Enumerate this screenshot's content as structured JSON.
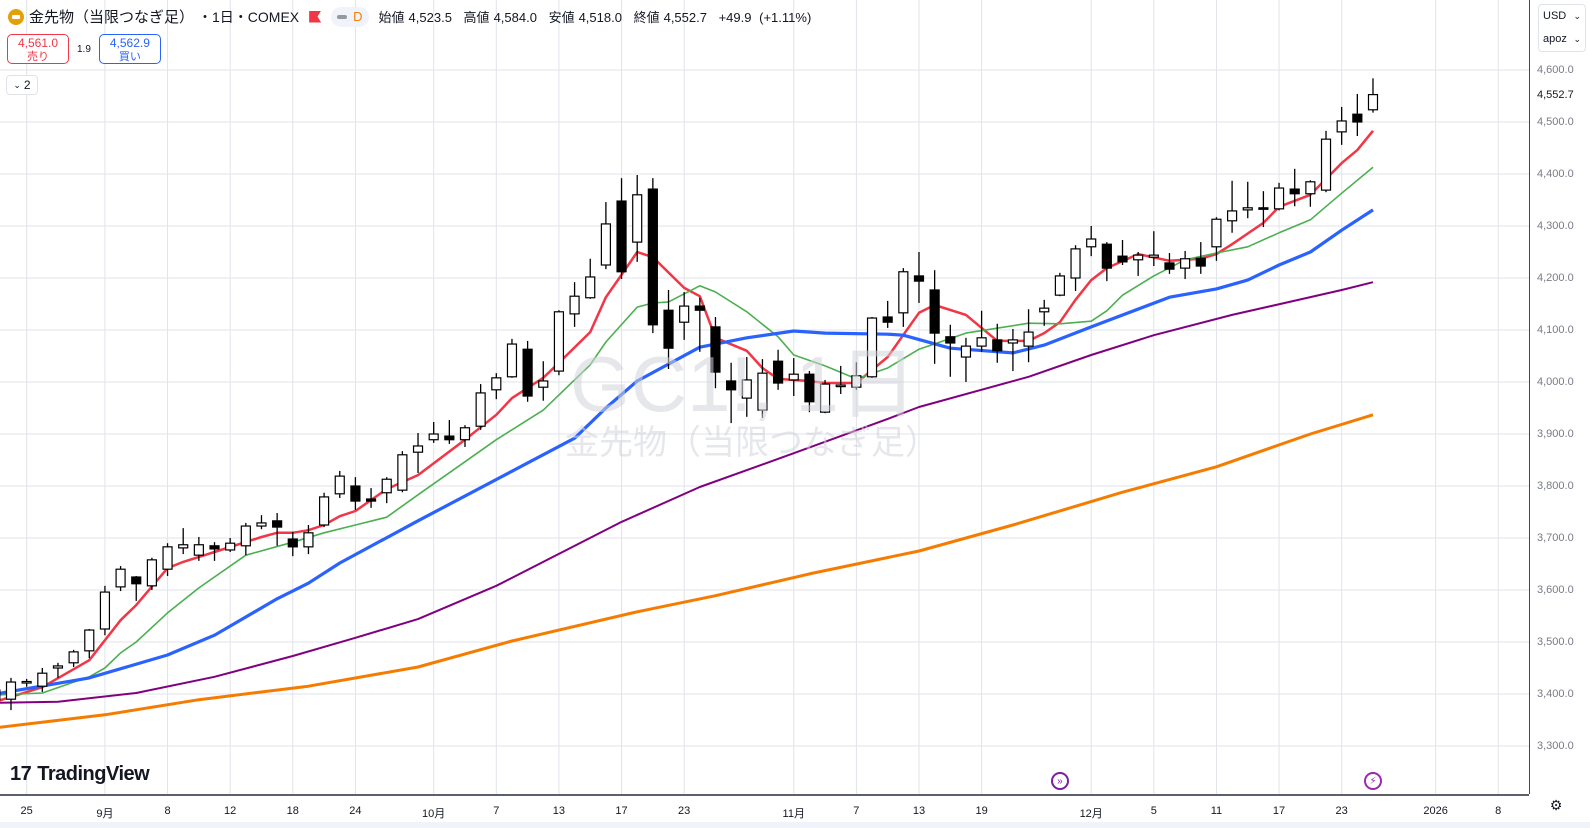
{
  "header": {
    "icon": "gold-bars-icon",
    "title": "金先物（当限つなぎ足）",
    "meta": "・1日・COMEX",
    "pill_label": "D",
    "ohlc": {
      "open_label": "始値",
      "open": "4,523.5",
      "high_label": "高値",
      "high": "4,584.0",
      "low_label": "安値",
      "low": "4,518.0",
      "close_label": "終値",
      "close": "4,552.7",
      "change": "+49.9",
      "change_pct": "(+1.11%)"
    }
  },
  "trade": {
    "sell_price": "4,561.0",
    "sell_label": "売り",
    "spread": "1.9",
    "buy_price": "4,562.9",
    "buy_label": "買い"
  },
  "indicators_toggle": "2",
  "watermark": {
    "symbol": "GC1!, 1日",
    "name": "金先物（当限つなぎ足）"
  },
  "right_panel": {
    "currency": "USD",
    "unit": "apoz",
    "current_price_label": "4,552.7"
  },
  "logo": "TradingView",
  "settings_icon": "gear-icon",
  "colors": {
    "up_body": "#ffffff",
    "down_body": "#000000",
    "ma_red": "#f23645",
    "ma_green": "#4caf50",
    "ma_blue": "#2962ff",
    "ma_purple": "#800080",
    "ma_orange": "#f57c00",
    "grid": "#e0e3eb"
  },
  "chart_data": {
    "type": "candlestick",
    "price_range": [
      3300,
      4600
    ],
    "price_ticks": [
      "4,600.0",
      "4,500.0",
      "4,400.0",
      "4,300.0",
      "4,200.0",
      "4,100.0",
      "4,000.0",
      "3,900.0",
      "3,800.0",
      "3,700.0",
      "3,600.0",
      "3,500.0",
      "3,400.0",
      "3,300.0"
    ],
    "price_tick_values": [
      4600,
      4500,
      4400,
      4300,
      4200,
      4100,
      4000,
      3900,
      3800,
      3700,
      3600,
      3500,
      3400,
      3300
    ],
    "current_price": 4552.7,
    "time_ticks": [
      {
        "label": "25",
        "index": 2
      },
      {
        "label": "9月",
        "index": 7
      },
      {
        "label": "8",
        "index": 11
      },
      {
        "label": "12",
        "index": 15
      },
      {
        "label": "18",
        "index": 19
      },
      {
        "label": "24",
        "index": 23
      },
      {
        "label": "10月",
        "index": 28
      },
      {
        "label": "7",
        "index": 32
      },
      {
        "label": "13",
        "index": 36
      },
      {
        "label": "17",
        "index": 40
      },
      {
        "label": "23",
        "index": 44
      },
      {
        "label": "11月",
        "index": 51
      },
      {
        "label": "7",
        "index": 55
      },
      {
        "label": "13",
        "index": 59
      },
      {
        "label": "19",
        "index": 63
      },
      {
        "label": "12月",
        "index": 70
      },
      {
        "label": "5",
        "index": 74
      },
      {
        "label": "11",
        "index": 78
      },
      {
        "label": "17",
        "index": 82
      },
      {
        "label": "23",
        "index": 86
      },
      {
        "label": "2026",
        "index": 92
      },
      {
        "label": "8",
        "index": 96
      }
    ],
    "events": [
      {
        "type": "dividend-split-icon",
        "index": 68,
        "color": "#7b1fa2"
      },
      {
        "type": "lightning-icon",
        "index": 88,
        "color": "#9c27b0"
      }
    ],
    "candles_ohlc": [
      [
        3408,
        3415,
        3380,
        3389
      ],
      [
        3390,
        3431,
        3369,
        3423
      ],
      [
        3422,
        3429,
        3414,
        3424
      ],
      [
        3415,
        3450,
        3404,
        3440
      ],
      [
        3450,
        3460,
        3431,
        3454
      ],
      [
        3460,
        3485,
        3452,
        3481
      ],
      [
        3483,
        3525,
        3469,
        3523
      ],
      [
        3525,
        3608,
        3513,
        3596
      ],
      [
        3606,
        3646,
        3598,
        3640
      ],
      [
        3625,
        3627,
        3579,
        3612
      ],
      [
        3608,
        3662,
        3600,
        3658
      ],
      [
        3640,
        3690,
        3627,
        3683
      ],
      [
        3681,
        3719,
        3669,
        3687
      ],
      [
        3667,
        3702,
        3656,
        3687
      ],
      [
        3685,
        3692,
        3656,
        3679
      ],
      [
        3677,
        3700,
        3673,
        3690
      ],
      [
        3685,
        3729,
        3667,
        3723
      ],
      [
        3723,
        3744,
        3717,
        3729
      ],
      [
        3733,
        3748,
        3685,
        3721
      ],
      [
        3698,
        3712,
        3665,
        3683
      ],
      [
        3683,
        3725,
        3669,
        3710
      ],
      [
        3725,
        3787,
        3721,
        3779
      ],
      [
        3785,
        3829,
        3777,
        3819
      ],
      [
        3800,
        3817,
        3754,
        3771
      ],
      [
        3775,
        3796,
        3758,
        3771
      ],
      [
        3787,
        3817,
        3767,
        3813
      ],
      [
        3792,
        3867,
        3788,
        3860
      ],
      [
        3865,
        3902,
        3825,
        3877
      ],
      [
        3889,
        3923,
        3883,
        3900
      ],
      [
        3896,
        3927,
        3881,
        3889
      ],
      [
        3889,
        3917,
        3875,
        3912
      ],
      [
        3915,
        3996,
        3908,
        3979
      ],
      [
        3985,
        4017,
        3967,
        4008
      ],
      [
        4010,
        4083,
        4008,
        4073
      ],
      [
        4063,
        4079,
        3962,
        3973
      ],
      [
        3990,
        4040,
        3964,
        4002
      ],
      [
        4021,
        4138,
        4013,
        4135
      ],
      [
        4131,
        4192,
        4106,
        4165
      ],
      [
        4162,
        4237,
        4160,
        4202
      ],
      [
        4225,
        4346,
        4217,
        4304
      ],
      [
        4348,
        4392,
        4198,
        4212
      ],
      [
        4269,
        4398,
        4231,
        4360
      ],
      [
        4371,
        4392,
        4094,
        4110
      ],
      [
        4138,
        4177,
        4025,
        4065
      ],
      [
        4115,
        4173,
        4081,
        4146
      ],
      [
        4146,
        4162,
        4058,
        4138
      ],
      [
        4106,
        4125,
        3988,
        4019
      ],
      [
        4002,
        4037,
        3921,
        3985
      ],
      [
        3969,
        4048,
        3933,
        4004
      ],
      [
        3946,
        4044,
        3931,
        4017
      ],
      [
        4040,
        4062,
        3985,
        3998
      ],
      [
        4004,
        4046,
        3973,
        4015
      ],
      [
        4015,
        4021,
        3942,
        3962
      ],
      [
        3942,
        4004,
        3940,
        3996
      ],
      [
        3993,
        4031,
        3977,
        3994
      ],
      [
        3990,
        4038,
        3985,
        4012
      ],
      [
        4010,
        4125,
        4008,
        4123
      ],
      [
        4125,
        4156,
        4104,
        4115
      ],
      [
        4133,
        4219,
        4106,
        4212
      ],
      [
        4204,
        4250,
        4152,
        4194
      ],
      [
        4177,
        4215,
        4035,
        4094
      ],
      [
        4087,
        4110,
        4010,
        4075
      ],
      [
        4048,
        4085,
        4000,
        4069
      ],
      [
        4069,
        4137,
        4058,
        4085
      ],
      [
        4081,
        4112,
        4037,
        4060
      ],
      [
        4075,
        4102,
        4021,
        4081
      ],
      [
        4069,
        4140,
        4038,
        4096
      ],
      [
        4135,
        4158,
        4108,
        4142
      ],
      [
        4167,
        4210,
        4165,
        4204
      ],
      [
        4200,
        4263,
        4175,
        4256
      ],
      [
        4260,
        4300,
        4242,
        4275
      ],
      [
        4265,
        4269,
        4194,
        4219
      ],
      [
        4242,
        4273,
        4225,
        4231
      ],
      [
        4235,
        4250,
        4204,
        4244
      ],
      [
        4240,
        4290,
        4223,
        4244
      ],
      [
        4229,
        4248,
        4208,
        4217
      ],
      [
        4219,
        4252,
        4198,
        4237
      ],
      [
        4238,
        4269,
        4208,
        4223
      ],
      [
        4260,
        4317,
        4233,
        4313
      ],
      [
        4310,
        4387,
        4287,
        4329
      ],
      [
        4331,
        4385,
        4315,
        4335
      ],
      [
        4335,
        4367,
        4298,
        4333
      ],
      [
        4333,
        4383,
        4330,
        4373
      ],
      [
        4371,
        4410,
        4338,
        4362
      ],
      [
        4362,
        4388,
        4337,
        4385
      ],
      [
        4369,
        4483,
        4365,
        4467
      ],
      [
        4481,
        4529,
        4456,
        4502
      ],
      [
        4515,
        4554,
        4473,
        4500
      ],
      [
        4523.5,
        4584,
        4518,
        4552.7
      ]
    ],
    "moving_averages": [
      {
        "name": "ma-red",
        "color": "#f23645",
        "points": [
          [
            0,
            3385
          ],
          [
            3,
            3413
          ],
          [
            6,
            3465
          ],
          [
            8,
            3542
          ],
          [
            9,
            3571
          ],
          [
            11,
            3642
          ],
          [
            12,
            3654
          ],
          [
            14,
            3673
          ],
          [
            17,
            3702
          ],
          [
            18,
            3710
          ],
          [
            19,
            3710
          ],
          [
            20,
            3715
          ],
          [
            21,
            3725
          ],
          [
            22,
            3742
          ],
          [
            23,
            3752
          ],
          [
            25,
            3794
          ],
          [
            27,
            3821
          ],
          [
            30,
            3889
          ],
          [
            32,
            3937
          ],
          [
            33,
            3969
          ],
          [
            35,
            4008
          ],
          [
            36,
            4037
          ],
          [
            38,
            4096
          ],
          [
            39,
            4163
          ],
          [
            40,
            4206
          ],
          [
            41,
            4250
          ],
          [
            42,
            4240
          ],
          [
            44,
            4181
          ],
          [
            45,
            4165
          ],
          [
            46,
            4085
          ],
          [
            48,
            4060
          ],
          [
            49,
            4027
          ],
          [
            50,
            4006
          ],
          [
            52,
            4002
          ],
          [
            53,
            3998
          ],
          [
            55,
            3998
          ],
          [
            57,
            4048
          ],
          [
            59,
            4133
          ],
          [
            60,
            4148
          ],
          [
            62,
            4129
          ],
          [
            64,
            4079
          ],
          [
            66,
            4079
          ],
          [
            67,
            4094
          ],
          [
            68,
            4115
          ],
          [
            69,
            4158
          ],
          [
            70,
            4196
          ],
          [
            71,
            4219
          ],
          [
            73,
            4246
          ],
          [
            75,
            4233
          ],
          [
            77,
            4237
          ],
          [
            78,
            4246
          ],
          [
            79,
            4265
          ],
          [
            81,
            4306
          ],
          [
            82,
            4337
          ],
          [
            84,
            4360
          ],
          [
            86,
            4421
          ],
          [
            87,
            4446
          ],
          [
            88,
            4483
          ]
        ]
      },
      {
        "name": "ma-green",
        "color": "#4caf50",
        "points": [
          [
            0,
            3398
          ],
          [
            3,
            3402
          ],
          [
            6,
            3433
          ],
          [
            7,
            3450
          ],
          [
            8,
            3479
          ],
          [
            9,
            3500
          ],
          [
            11,
            3556
          ],
          [
            13,
            3604
          ],
          [
            16,
            3667
          ],
          [
            19,
            3692
          ],
          [
            21,
            3710
          ],
          [
            23,
            3725
          ],
          [
            25,
            3740
          ],
          [
            27,
            3783
          ],
          [
            32,
            3889
          ],
          [
            35,
            3946
          ],
          [
            38,
            4033
          ],
          [
            39,
            4077
          ],
          [
            41,
            4144
          ],
          [
            42,
            4152
          ],
          [
            43,
            4154
          ],
          [
            45,
            4185
          ],
          [
            46,
            4173
          ],
          [
            48,
            4135
          ],
          [
            50,
            4087
          ],
          [
            51,
            4052
          ],
          [
            53,
            4031
          ],
          [
            55,
            4006
          ],
          [
            57,
            4027
          ],
          [
            59,
            4063
          ],
          [
            62,
            4094
          ],
          [
            66,
            4113
          ],
          [
            68,
            4112
          ],
          [
            70,
            4117
          ],
          [
            71,
            4137
          ],
          [
            72,
            4167
          ],
          [
            74,
            4204
          ],
          [
            76,
            4235
          ],
          [
            78,
            4248
          ],
          [
            80,
            4260
          ],
          [
            82,
            4287
          ],
          [
            84,
            4312
          ],
          [
            86,
            4363
          ],
          [
            88,
            4413
          ]
        ]
      },
      {
        "name": "ma-blue",
        "color": "#2962ff",
        "points": [
          [
            0,
            3400
          ],
          [
            6,
            3431
          ],
          [
            11,
            3475
          ],
          [
            14,
            3513
          ],
          [
            18,
            3583
          ],
          [
            20,
            3613
          ],
          [
            22,
            3652
          ],
          [
            27,
            3733
          ],
          [
            37,
            3892
          ],
          [
            39,
            3950
          ],
          [
            41,
            4002
          ],
          [
            45,
            4067
          ],
          [
            48,
            4085
          ],
          [
            51,
            4098
          ],
          [
            53,
            4094
          ],
          [
            57,
            4092
          ],
          [
            58,
            4090
          ],
          [
            61,
            4065
          ],
          [
            65,
            4056
          ],
          [
            67,
            4071
          ],
          [
            70,
            4106
          ],
          [
            75,
            4163
          ],
          [
            78,
            4179
          ],
          [
            80,
            4196
          ],
          [
            82,
            4225
          ],
          [
            84,
            4250
          ],
          [
            86,
            4292
          ],
          [
            88,
            4331
          ]
        ]
      },
      {
        "name": "ma-purple",
        "color": "#800080",
        "points": [
          [
            0,
            3383
          ],
          [
            4,
            3385
          ],
          [
            9,
            3402
          ],
          [
            14,
            3433
          ],
          [
            19,
            3473
          ],
          [
            23,
            3508
          ],
          [
            27,
            3544
          ],
          [
            32,
            3608
          ],
          [
            40,
            3731
          ],
          [
            45,
            3798
          ],
          [
            51,
            3863
          ],
          [
            57,
            3929
          ],
          [
            59,
            3952
          ],
          [
            66,
            4010
          ],
          [
            70,
            4052
          ],
          [
            74,
            4090
          ],
          [
            79,
            4129
          ],
          [
            86,
            4177
          ],
          [
            88,
            4192
          ]
        ]
      },
      {
        "name": "ma-orange",
        "color": "#f57c00",
        "points": [
          [
            0,
            3335
          ],
          [
            7,
            3360
          ],
          [
            13,
            3389
          ],
          [
            20,
            3415
          ],
          [
            27,
            3452
          ],
          [
            33,
            3502
          ],
          [
            41,
            3558
          ],
          [
            46,
            3589
          ],
          [
            52,
            3631
          ],
          [
            59,
            3675
          ],
          [
            65,
            3725
          ],
          [
            72,
            3788
          ],
          [
            78,
            3837
          ],
          [
            84,
            3900
          ],
          [
            88,
            3937
          ]
        ]
      }
    ]
  }
}
